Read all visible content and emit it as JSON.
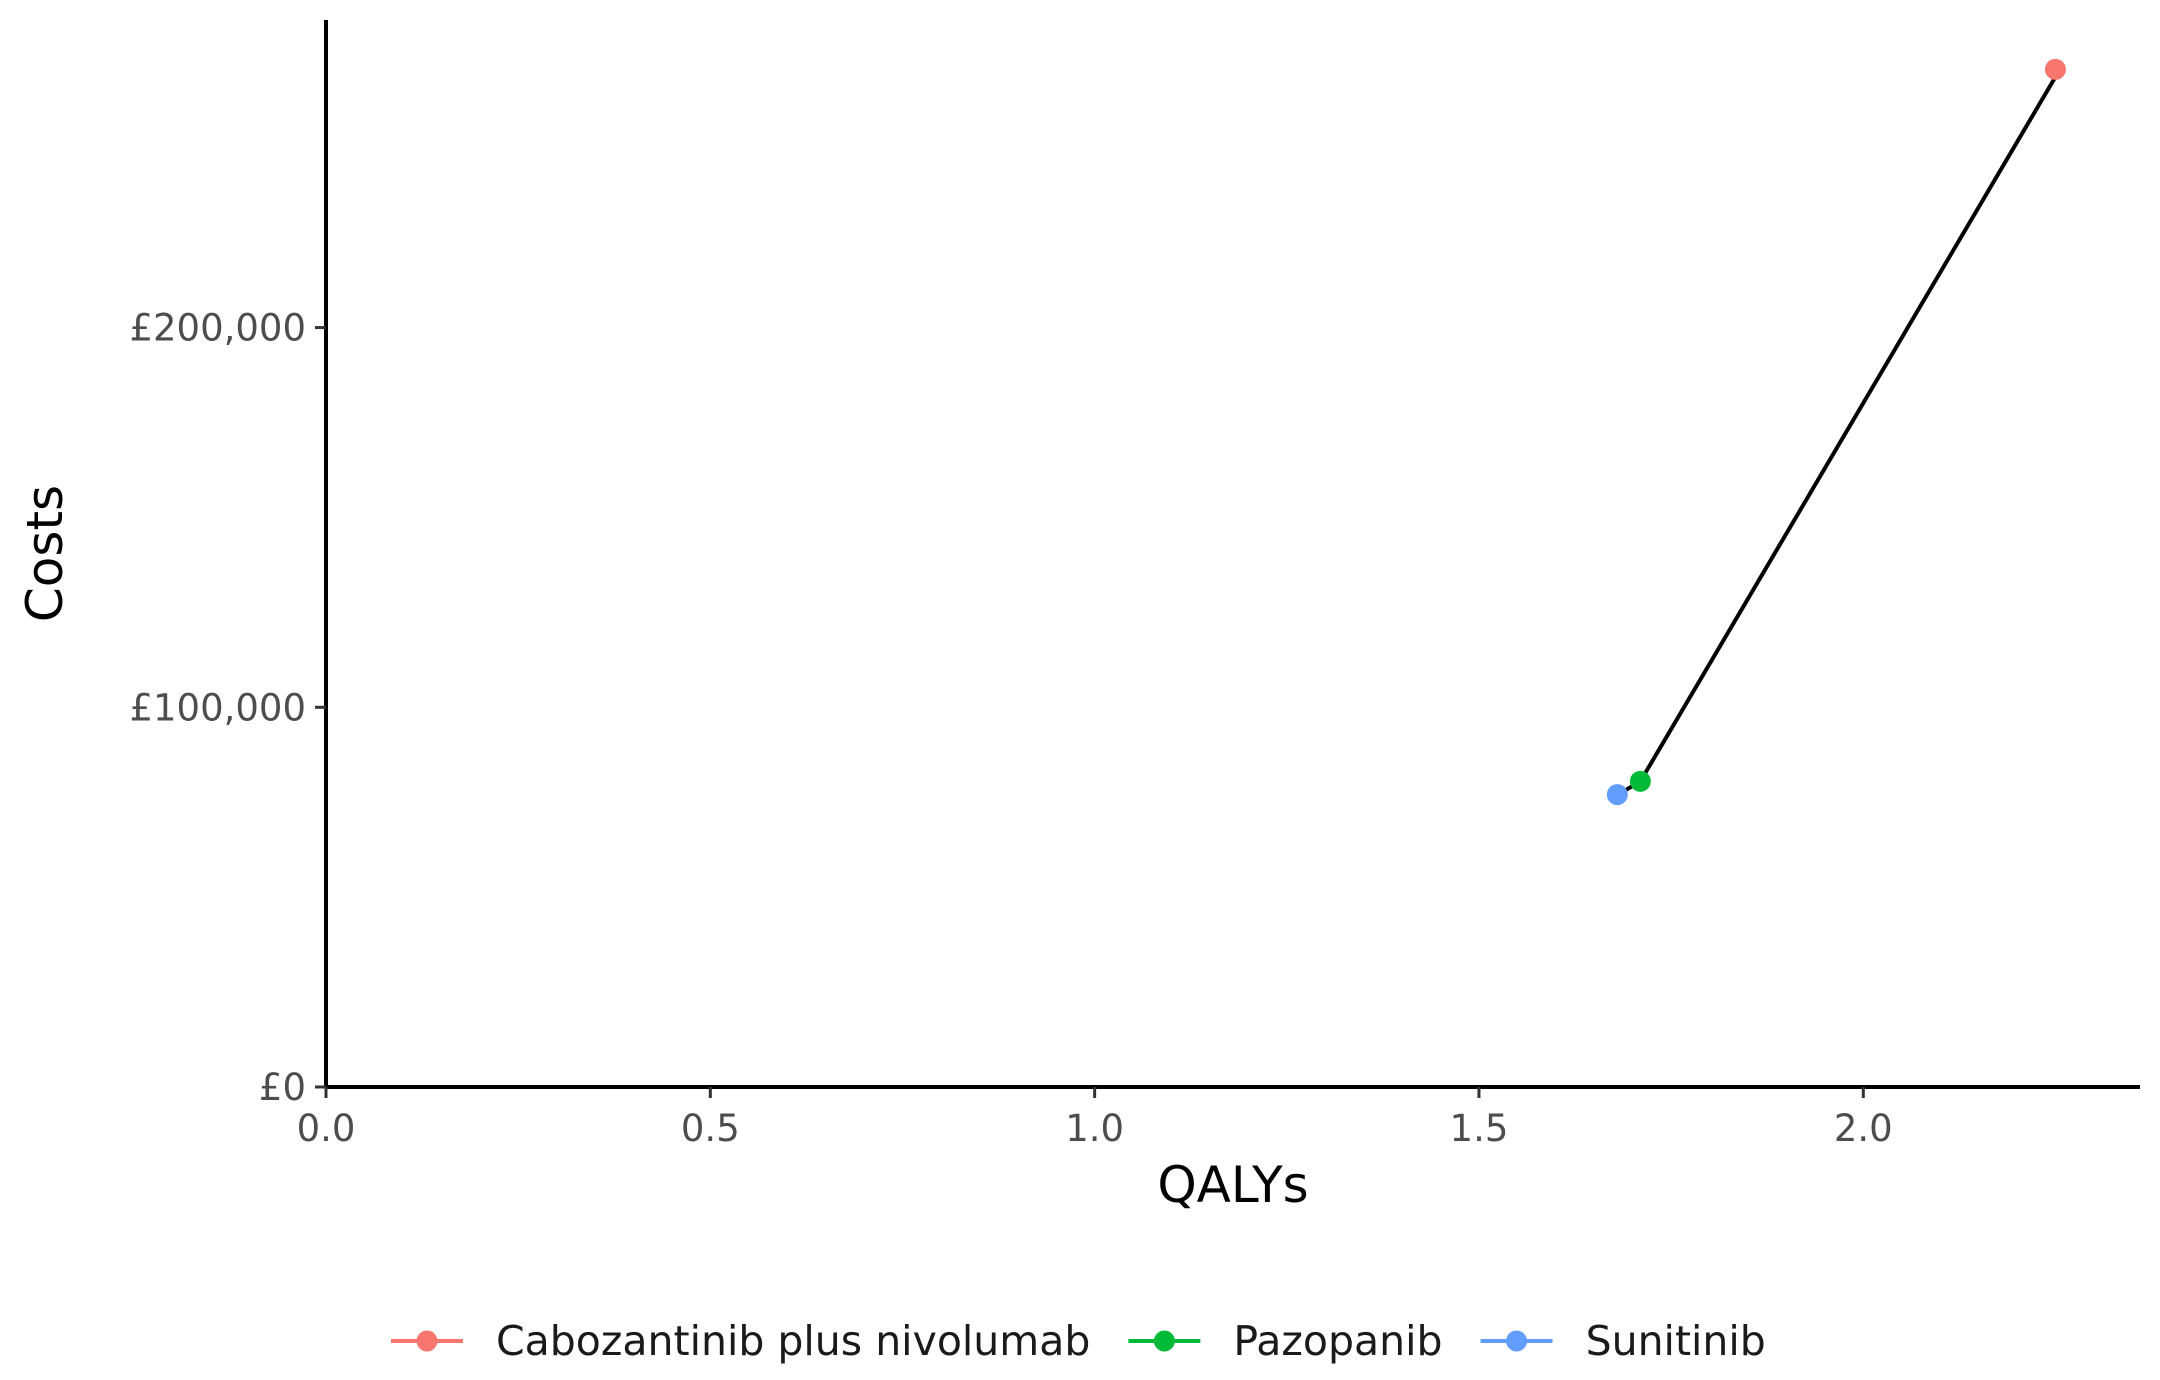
{
  "chart_data": {
    "type": "scatter",
    "xlabel": "QALYs",
    "ylabel": "Costs",
    "xlim": [
      0,
      2.36
    ],
    "ylim": [
      0,
      281000
    ],
    "x_ticks": [
      0,
      0.5,
      1.0,
      1.5,
      2.0
    ],
    "x_tick_labels": [
      "0.0",
      "0.5",
      "1.0",
      "1.5",
      "2.0"
    ],
    "y_ticks": [
      0,
      100000,
      200000
    ],
    "y_tick_labels": [
      "£0",
      "£100,000",
      "£200,000"
    ],
    "grid": false,
    "legend_position": "bottom",
    "series": [
      {
        "name": "Cabozantinib plus nivolumab",
        "color": "#F8766D",
        "x": 2.25,
        "y": 268000
      },
      {
        "name": "Pazopanib",
        "color": "#00BA38",
        "x": 1.71,
        "y": 80500
      },
      {
        "name": "Sunitinib",
        "color": "#619CFF",
        "x": 1.68,
        "y": 77000
      }
    ],
    "frontier": {
      "color": "#000000",
      "points": [
        {
          "x": 1.685,
          "y": 77500
        },
        {
          "x": 1.71,
          "y": 80500
        },
        {
          "x": 2.25,
          "y": 266000
        }
      ]
    }
  }
}
